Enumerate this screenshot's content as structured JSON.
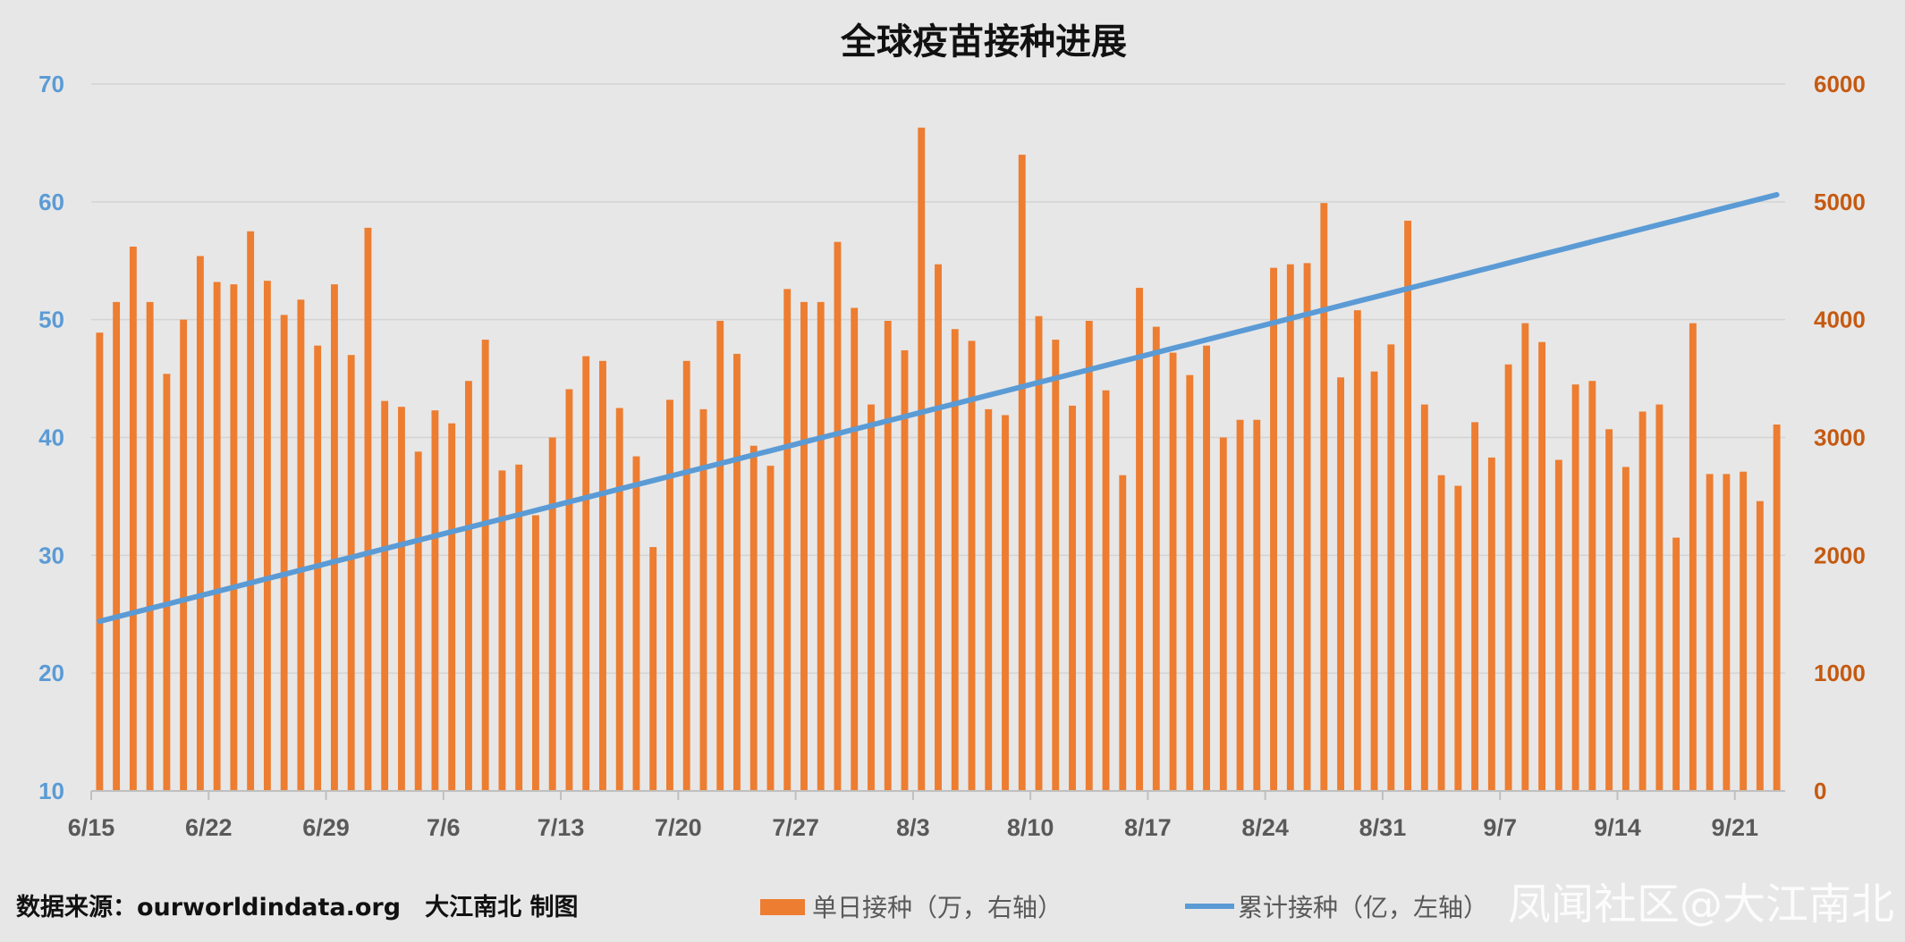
{
  "footer": {
    "source": "数据来源：ourworldindata.org　大江南北 制图",
    "watermark": "凤闻社区@大江南北"
  },
  "chart_data": {
    "type": "bar+line",
    "title": "全球疫苗接种进展",
    "x_tick_labels": [
      "6/15",
      "6/22",
      "6/29",
      "7/6",
      "7/13",
      "7/20",
      "7/27",
      "8/3",
      "8/10",
      "8/17",
      "8/24",
      "8/31",
      "9/7",
      "9/14",
      "9/21"
    ],
    "first_date": "6/15",
    "last_date": "9/23",
    "left_axis": {
      "ticks": [
        10,
        20,
        30,
        40,
        50,
        60,
        70
      ],
      "range": [
        10,
        70
      ],
      "color": "#5b9bd5"
    },
    "right_axis": {
      "ticks": [
        0,
        1000,
        2000,
        3000,
        4000,
        5000,
        6000
      ],
      "range": [
        0,
        6000
      ],
      "color": "#c55a11"
    },
    "grid": true,
    "legend_position": "bottom",
    "series": [
      {
        "name": "单日接种（万，右轴）",
        "type": "bar",
        "axis": "right",
        "color": "#ed7d31",
        "values": [
          3890,
          4150,
          4620,
          4150,
          3540,
          4000,
          4540,
          4320,
          4300,
          4750,
          4330,
          4040,
          4170,
          3780,
          4300,
          3700,
          4780,
          3310,
          3260,
          2880,
          3230,
          3120,
          3480,
          3830,
          2720,
          2770,
          2340,
          3000,
          3410,
          3690,
          3650,
          3250,
          2840,
          2070,
          3320,
          3650,
          3240,
          3990,
          3710,
          2930,
          2760,
          4260,
          4150,
          4150,
          4660,
          4100,
          3280,
          3990,
          3740,
          5630,
          4470,
          3920,
          3820,
          3240,
          3190,
          5400,
          4030,
          3830,
          3270,
          3990,
          3400,
          2680,
          4270,
          3940,
          3720,
          3530,
          3780,
          3000,
          3150,
          3150,
          4440,
          4470,
          4480,
          4990,
          3510,
          4080,
          3560,
          3790,
          4840,
          3280,
          2680,
          2590,
          3130,
          2830,
          3620,
          3970,
          3810,
          2810,
          3450,
          3480,
          3070,
          2750,
          3220,
          3280,
          2150,
          3970,
          2690,
          2690,
          2710,
          2460,
          3110
        ]
      },
      {
        "name": "累计接种（亿，左轴）",
        "type": "line",
        "axis": "left",
        "color": "#5b9bd5",
        "start": 24.4,
        "end": 60.6
      }
    ]
  }
}
